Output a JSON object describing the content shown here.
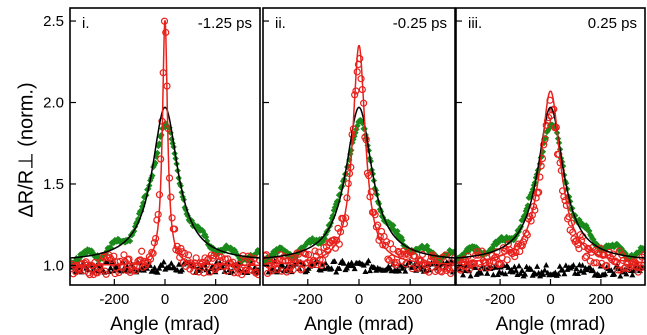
{
  "chart_data": {
    "type": "scatter",
    "ylabel": "ΔR/R⊥ (norm.)",
    "ylim": [
      0.88,
      2.58
    ],
    "yticks": [
      1.0,
      1.5,
      2.0,
      2.5
    ],
    "ytick_labels": [
      "1.0",
      "1.5",
      "2.0",
      "2.5"
    ],
    "xlim": [
      -375,
      375
    ],
    "xticks": [
      -200,
      0,
      200
    ],
    "xtick_labels": [
      "-200",
      "0",
      "200"
    ],
    "colors": {
      "green": "#1a8a1a",
      "red": "#e8211c",
      "black": "#000000"
    },
    "panels": [
      {
        "label": "i.",
        "time": "-1.25 ps",
        "xlabel": "Angle (mrad)",
        "green_fit": {
          "peak": 1.97,
          "width": 62,
          "baseline": 1.02
        },
        "red_fit": {
          "peak": 2.51,
          "width": 12,
          "baseline": 1.0
        },
        "green_points": {
          "peak": 1.86,
          "width": 70,
          "baseline": 1.02
        },
        "red_points": {
          "peak": 2.5,
          "width": 14,
          "baseline": 1.0
        },
        "black_points": {
          "level": 0.99
        }
      },
      {
        "label": "ii.",
        "time": "-0.25 ps",
        "xlabel": "Angle (mrad)",
        "green_fit": {
          "peak": 1.97,
          "width": 62,
          "baseline": 1.02
        },
        "red_fit": {
          "peak": 2.35,
          "width": 30,
          "baseline": 1.0
        },
        "green_points": {
          "peak": 1.88,
          "width": 68,
          "baseline": 1.03
        },
        "red_points": {
          "peak": 2.28,
          "width": 32,
          "baseline": 1.0
        },
        "black_points": {
          "level": 0.995
        }
      },
      {
        "label": "iii.",
        "time": "0.25 ps",
        "xlabel": "Angle (mrad)",
        "green_fit": {
          "peak": 1.97,
          "width": 62,
          "baseline": 1.02
        },
        "red_fit": {
          "peak": 2.07,
          "width": 48,
          "baseline": 1.0
        },
        "green_points": {
          "peak": 1.87,
          "width": 70,
          "baseline": 1.04
        },
        "red_points": {
          "peak": 1.97,
          "width": 48,
          "baseline": 1.0
        },
        "black_points": {
          "level": 0.97
        }
      }
    ]
  }
}
